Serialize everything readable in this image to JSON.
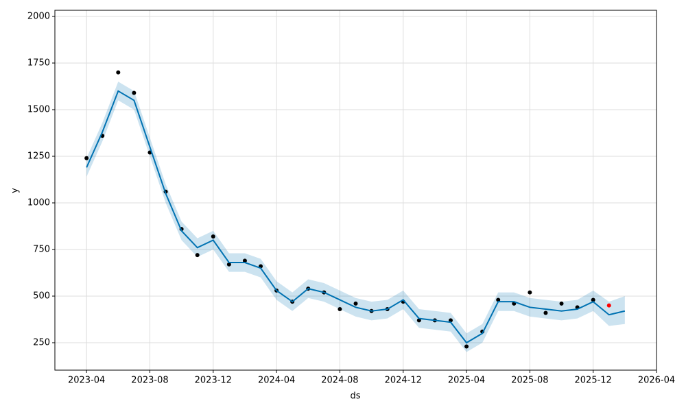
{
  "chart_data": {
    "type": "forecast",
    "x_label": "ds",
    "y_label": "y",
    "xlim": [
      "2023-02",
      "2026-04"
    ],
    "xticks": [
      "2023-04",
      "2023-08",
      "2023-12",
      "2024-04",
      "2024-08",
      "2024-12",
      "2025-04",
      "2025-08",
      "2025-12",
      "2026-04"
    ],
    "ylim": [
      103,
      2033
    ],
    "yticks": [
      250,
      500,
      750,
      1000,
      1250,
      1500,
      1750,
      2000
    ],
    "grid": true,
    "forecast": {
      "color": "#0072B2",
      "band_color": "#0072B2",
      "x": [
        "2023-04",
        "2023-05",
        "2023-06",
        "2023-07",
        "2023-08",
        "2023-09",
        "2023-10",
        "2023-11",
        "2023-12",
        "2024-01",
        "2024-02",
        "2024-03",
        "2024-04",
        "2024-05",
        "2024-06",
        "2024-07",
        "2024-08",
        "2024-09",
        "2024-10",
        "2024-11",
        "2024-12",
        "2025-01",
        "2025-02",
        "2025-03",
        "2025-04",
        "2025-05",
        "2025-06",
        "2025-07",
        "2025-08",
        "2025-09",
        "2025-10",
        "2025-11",
        "2025-12",
        "2026-01",
        "2026-02"
      ],
      "values": [
        1190,
        1380,
        1600,
        1550,
        1300,
        1050,
        850,
        760,
        800,
        680,
        680,
        650,
        530,
        470,
        540,
        520,
        480,
        440,
        420,
        430,
        480,
        380,
        370,
        360,
        250,
        300,
        470,
        470,
        440,
        430,
        420,
        430,
        470,
        400,
        420
      ],
      "lower": [
        1140,
        1330,
        1550,
        1500,
        1250,
        1000,
        800,
        710,
        750,
        630,
        630,
        600,
        480,
        420,
        490,
        470,
        430,
        390,
        370,
        380,
        430,
        330,
        320,
        310,
        200,
        250,
        420,
        420,
        390,
        380,
        370,
        380,
        420,
        340,
        350
      ],
      "upper": [
        1240,
        1430,
        1650,
        1600,
        1350,
        1100,
        900,
        810,
        850,
        730,
        730,
        700,
        580,
        520,
        590,
        570,
        530,
        490,
        470,
        480,
        530,
        430,
        420,
        410,
        300,
        350,
        520,
        520,
        490,
        480,
        470,
        480,
        530,
        470,
        500
      ]
    },
    "observed": {
      "color": "#000000",
      "x": [
        "2023-04",
        "2023-05",
        "2023-06",
        "2023-07",
        "2023-08",
        "2023-09",
        "2023-10",
        "2023-11",
        "2023-12",
        "2024-01",
        "2024-02",
        "2024-03",
        "2024-04",
        "2024-05",
        "2024-06",
        "2024-07",
        "2024-08",
        "2024-09",
        "2024-10",
        "2024-11",
        "2024-12",
        "2025-01",
        "2025-02",
        "2025-03",
        "2025-04",
        "2025-05",
        "2025-06",
        "2025-07",
        "2025-08",
        "2025-09",
        "2025-10",
        "2025-11",
        "2025-12"
      ],
      "values": [
        1240,
        1360,
        1700,
        1590,
        1270,
        1060,
        860,
        720,
        820,
        670,
        690,
        660,
        530,
        470,
        540,
        520,
        430,
        460,
        420,
        430,
        470,
        370,
        370,
        370,
        230,
        310,
        480,
        460,
        520,
        410,
        460,
        440,
        480
      ]
    },
    "future_observed": {
      "color": "#ff0000",
      "x": [
        "2026-01"
      ],
      "values": [
        450
      ]
    }
  }
}
